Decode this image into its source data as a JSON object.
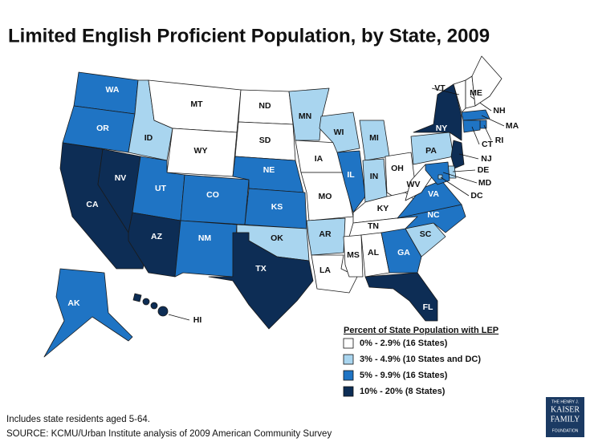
{
  "title": "Limited English Proficient Population, by State, 2009",
  "legend": {
    "title": "Percent of State Population with LEP",
    "items": [
      {
        "label": "0% - 2.9% (16 States)",
        "color": "#ffffff"
      },
      {
        "label": "3% - 4.9% (10 States and DC)",
        "color": "#a9d5ef"
      },
      {
        "label": "5% - 9.9% (16 States)",
        "color": "#1f74c4"
      },
      {
        "label": "10% - 20% (8 States)",
        "color": "#0d2d55"
      }
    ]
  },
  "states": [
    {
      "abbr": "WA",
      "category": 2
    },
    {
      "abbr": "OR",
      "category": 2
    },
    {
      "abbr": "CA",
      "category": 3
    },
    {
      "abbr": "NV",
      "category": 3
    },
    {
      "abbr": "ID",
      "category": 1
    },
    {
      "abbr": "MT",
      "category": 0
    },
    {
      "abbr": "WY",
      "category": 0
    },
    {
      "abbr": "UT",
      "category": 2
    },
    {
      "abbr": "AZ",
      "category": 3
    },
    {
      "abbr": "CO",
      "category": 2
    },
    {
      "abbr": "NM",
      "category": 2
    },
    {
      "abbr": "ND",
      "category": 0
    },
    {
      "abbr": "SD",
      "category": 0
    },
    {
      "abbr": "NE",
      "category": 2
    },
    {
      "abbr": "KS",
      "category": 2
    },
    {
      "abbr": "OK",
      "category": 1
    },
    {
      "abbr": "TX",
      "category": 3
    },
    {
      "abbr": "MN",
      "category": 1
    },
    {
      "abbr": "IA",
      "category": 0
    },
    {
      "abbr": "MO",
      "category": 0
    },
    {
      "abbr": "AR",
      "category": 1
    },
    {
      "abbr": "LA",
      "category": 0
    },
    {
      "abbr": "WI",
      "category": 1
    },
    {
      "abbr": "IL",
      "category": 2
    },
    {
      "abbr": "MI",
      "category": 1
    },
    {
      "abbr": "IN",
      "category": 1
    },
    {
      "abbr": "OH",
      "category": 0
    },
    {
      "abbr": "KY",
      "category": 0
    },
    {
      "abbr": "TN",
      "category": 0
    },
    {
      "abbr": "MS",
      "category": 0
    },
    {
      "abbr": "AL",
      "category": 0
    },
    {
      "abbr": "GA",
      "category": 2
    },
    {
      "abbr": "FL",
      "category": 3
    },
    {
      "abbr": "SC",
      "category": 1
    },
    {
      "abbr": "NC",
      "category": 2
    },
    {
      "abbr": "VA",
      "category": 2
    },
    {
      "abbr": "WV",
      "category": 0
    },
    {
      "abbr": "PA",
      "category": 1
    },
    {
      "abbr": "NY",
      "category": 3
    },
    {
      "abbr": "VT",
      "category": 0
    },
    {
      "abbr": "NH",
      "category": 0
    },
    {
      "abbr": "ME",
      "category": 0
    },
    {
      "abbr": "MA",
      "category": 2
    },
    {
      "abbr": "RI",
      "category": 2
    },
    {
      "abbr": "CT",
      "category": 2
    },
    {
      "abbr": "NJ",
      "category": 3
    },
    {
      "abbr": "DE",
      "category": 1
    },
    {
      "abbr": "MD",
      "category": 2
    },
    {
      "abbr": "DC",
      "category": 1
    },
    {
      "abbr": "AK",
      "category": 2
    },
    {
      "abbr": "HI",
      "category": 3
    }
  ],
  "notes": [
    "Includes state residents aged 5-64.",
    "SOURCE: KCMU/Urban Institute analysis of 2009 American Community Survey"
  ],
  "logo": [
    "THE HENRY J.",
    "KAISER",
    "FAMILY",
    "FOUNDATION"
  ]
}
